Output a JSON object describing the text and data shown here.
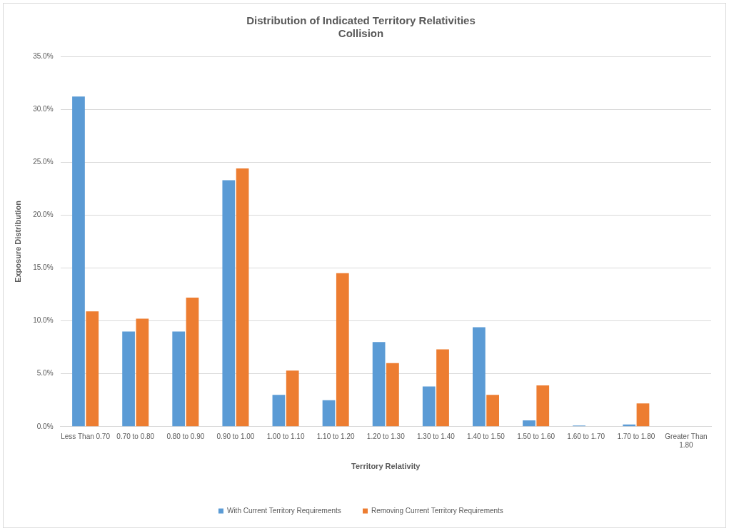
{
  "chart_data": {
    "type": "bar",
    "title": "Distribution of Indicated Territory Relativities",
    "subtitle": "Collision",
    "xlabel": "Territory Relativity",
    "ylabel": "Exposure Distribution",
    "categories": [
      "Less Than 0.70",
      "0.70 to 0.80",
      "0.80 to 0.90",
      "0.90 to 1.00",
      "1.00 to 1.10",
      "1.10 to 1.20",
      "1.20 to 1.30",
      "1.30 to 1.40",
      "1.40 to 1.50",
      "1.50 to 1.60",
      "1.60 to 1.70",
      "1.70 to 1.80",
      "Greater Than 1.80"
    ],
    "series": [
      {
        "name": "With Current Territory Requirements",
        "color": "#5b9bd5",
        "values": [
          31.2,
          9.0,
          9.0,
          23.3,
          3.0,
          2.5,
          8.0,
          3.8,
          9.4,
          0.6,
          0.1,
          0.2,
          0
        ]
      },
      {
        "name": "Removing Current Territory Requirements",
        "color": "#ed7d31",
        "values": [
          10.9,
          10.2,
          12.2,
          24.4,
          5.3,
          14.5,
          6.0,
          7.3,
          3.0,
          3.9,
          0,
          2.2,
          0
        ]
      }
    ],
    "ylim": [
      0,
      35
    ],
    "yticks": [
      {
        "value": 0,
        "label": "0.0%"
      },
      {
        "value": 5,
        "label": "5.0%"
      },
      {
        "value": 10,
        "label": "10.0%"
      },
      {
        "value": 15,
        "label": "15.0%"
      },
      {
        "value": 20,
        "label": "20.0%"
      },
      {
        "value": 25,
        "label": "25.0%"
      },
      {
        "value": 30,
        "label": "30.0%"
      },
      {
        "value": 35,
        "label": "35.0%"
      }
    ],
    "grid": "y",
    "legend": "bottom"
  }
}
